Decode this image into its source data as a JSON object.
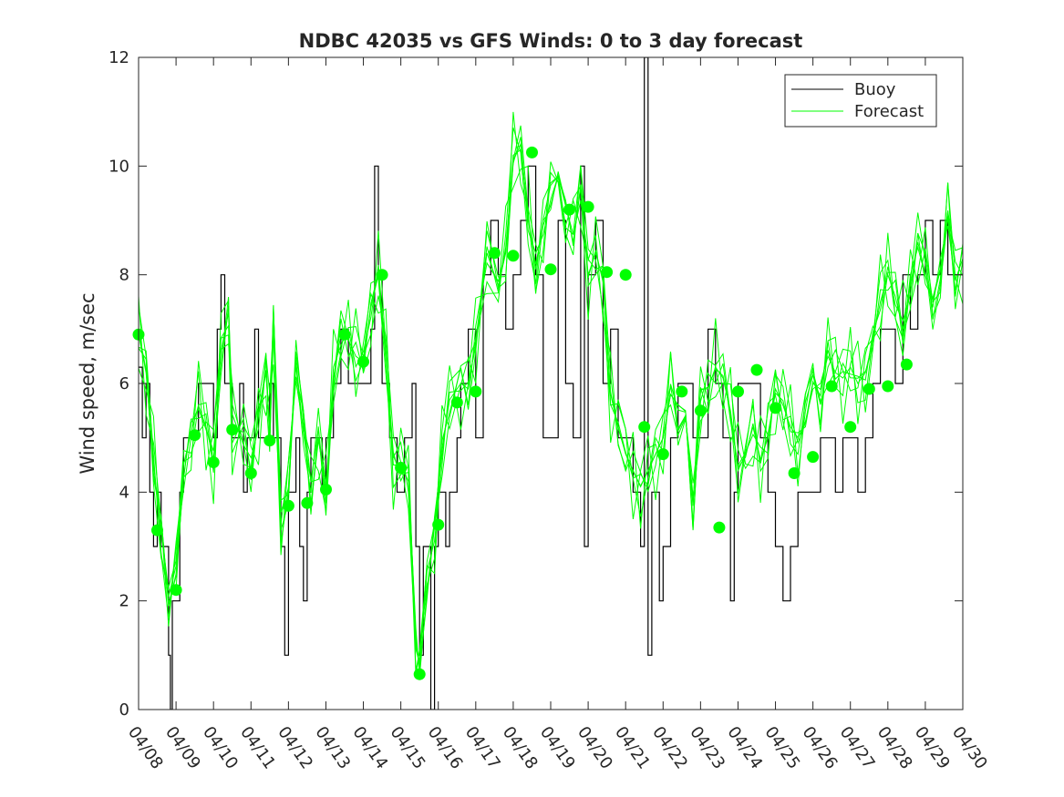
{
  "chart_data": {
    "type": "line",
    "title": "NDBC 42035 vs GFS Winds: 0 to 3 day forecast",
    "xlabel": "",
    "ylabel": "Wind speed, m/sec",
    "xlim": [
      "04/08",
      "04/30"
    ],
    "ylim": [
      0,
      12
    ],
    "yticks": [
      "0",
      "2",
      "4",
      "6",
      "8",
      "10",
      "12"
    ],
    "xticks": [
      "04/08",
      "04/09",
      "04/10",
      "04/11",
      "04/12",
      "04/13",
      "04/14",
      "04/15",
      "04/16",
      "04/17",
      "04/18",
      "04/19",
      "04/20",
      "04/21",
      "04/22",
      "04/23",
      "04/24",
      "04/25",
      "04/26",
      "04/27",
      "04/28",
      "04/29",
      "04/30"
    ],
    "grid": false,
    "legend_position": "top-right",
    "colors": {
      "buoy": "#000000",
      "forecast": "#00ff00",
      "axes": "#262626"
    },
    "series": [
      {
        "name": "Buoy",
        "style": "step",
        "points": [
          [
            0,
            6.3
          ],
          [
            0.1,
            5
          ],
          [
            0.2,
            6
          ],
          [
            0.3,
            4
          ],
          [
            0.4,
            3
          ],
          [
            0.5,
            4
          ],
          [
            0.6,
            3
          ],
          [
            0.7,
            3
          ],
          [
            0.8,
            1
          ],
          [
            0.85,
            0
          ],
          [
            0.9,
            2
          ],
          [
            1.0,
            2
          ],
          [
            1.1,
            4
          ],
          [
            1.2,
            5
          ],
          [
            1.4,
            5
          ],
          [
            1.6,
            6
          ],
          [
            1.8,
            6
          ],
          [
            2.0,
            5
          ],
          [
            2.1,
            7
          ],
          [
            2.2,
            8
          ],
          [
            2.3,
            6
          ],
          [
            2.5,
            5
          ],
          [
            2.7,
            6
          ],
          [
            2.8,
            4
          ],
          [
            2.9,
            5
          ],
          [
            3.0,
            5
          ],
          [
            3.1,
            7
          ],
          [
            3.2,
            5
          ],
          [
            3.5,
            6
          ],
          [
            3.6,
            5
          ],
          [
            3.8,
            3
          ],
          [
            3.9,
            1
          ],
          [
            4.0,
            4
          ],
          [
            4.2,
            5
          ],
          [
            4.3,
            3
          ],
          [
            4.4,
            2
          ],
          [
            4.5,
            4
          ],
          [
            4.6,
            5
          ],
          [
            4.7,
            5
          ],
          [
            4.9,
            4
          ],
          [
            5.0,
            5
          ],
          [
            5.2,
            6
          ],
          [
            5.4,
            7
          ],
          [
            5.6,
            6
          ],
          [
            5.8,
            6
          ],
          [
            6.0,
            6
          ],
          [
            6.2,
            7
          ],
          [
            6.3,
            10
          ],
          [
            6.4,
            8
          ],
          [
            6.5,
            6
          ],
          [
            6.7,
            5
          ],
          [
            6.9,
            4
          ],
          [
            7.1,
            5
          ],
          [
            7.3,
            6
          ],
          [
            7.4,
            3
          ],
          [
            7.5,
            1
          ],
          [
            7.6,
            3
          ],
          [
            7.8,
            0
          ],
          [
            7.9,
            3
          ],
          [
            8.0,
            4
          ],
          [
            8.2,
            3
          ],
          [
            8.3,
            4
          ],
          [
            8.5,
            5
          ],
          [
            8.6,
            6
          ],
          [
            8.8,
            7
          ],
          [
            9.0,
            5
          ],
          [
            9.2,
            8
          ],
          [
            9.4,
            9
          ],
          [
            9.6,
            8
          ],
          [
            9.8,
            7
          ],
          [
            10.0,
            8
          ],
          [
            10.2,
            9
          ],
          [
            10.4,
            10
          ],
          [
            10.6,
            8
          ],
          [
            10.8,
            5
          ],
          [
            11.0,
            5
          ],
          [
            11.2,
            9
          ],
          [
            11.4,
            6
          ],
          [
            11.6,
            5
          ],
          [
            11.8,
            10
          ],
          [
            11.9,
            3
          ],
          [
            12.0,
            8
          ],
          [
            12.2,
            9
          ],
          [
            12.4,
            6
          ],
          [
            12.6,
            7
          ],
          [
            12.8,
            5
          ],
          [
            13.0,
            5
          ],
          [
            13.2,
            4
          ],
          [
            13.4,
            3
          ],
          [
            13.5,
            12
          ],
          [
            13.6,
            1
          ],
          [
            13.7,
            4
          ],
          [
            13.9,
            2
          ],
          [
            14.0,
            3
          ],
          [
            14.2,
            5
          ],
          [
            14.4,
            6
          ],
          [
            14.6,
            6
          ],
          [
            14.8,
            5
          ],
          [
            15.0,
            5
          ],
          [
            15.2,
            7
          ],
          [
            15.4,
            6
          ],
          [
            15.6,
            5
          ],
          [
            15.8,
            2
          ],
          [
            15.9,
            4
          ],
          [
            16.0,
            6
          ],
          [
            16.2,
            6
          ],
          [
            16.4,
            6
          ],
          [
            16.6,
            5
          ],
          [
            16.8,
            4
          ],
          [
            17.0,
            3
          ],
          [
            17.2,
            2
          ],
          [
            17.4,
            3
          ],
          [
            17.6,
            4
          ],
          [
            18.0,
            4
          ],
          [
            18.2,
            5
          ],
          [
            18.4,
            5
          ],
          [
            18.6,
            4
          ],
          [
            18.8,
            5
          ],
          [
            19.0,
            5
          ],
          [
            19.2,
            4
          ],
          [
            19.4,
            5
          ],
          [
            19.6,
            6
          ],
          [
            19.8,
            7
          ],
          [
            20.0,
            7
          ],
          [
            20.2,
            6
          ],
          [
            20.4,
            8
          ],
          [
            20.6,
            7
          ],
          [
            20.8,
            8
          ],
          [
            21.0,
            9
          ],
          [
            21.2,
            8
          ],
          [
            21.4,
            9
          ],
          [
            21.6,
            8
          ],
          [
            21.8,
            8
          ],
          [
            22.0,
            8
          ]
        ]
      },
      {
        "name": "Forecast",
        "style": "line",
        "points": [
          [
            0,
            6.9
          ],
          [
            0.2,
            6.2
          ],
          [
            0.4,
            4.5
          ],
          [
            0.6,
            3.3
          ],
          [
            0.8,
            2.2
          ],
          [
            1.0,
            2.2
          ],
          [
            1.2,
            4.5
          ],
          [
            1.4,
            5.1
          ],
          [
            1.6,
            5.6
          ],
          [
            1.8,
            5.2
          ],
          [
            2.0,
            4.6
          ],
          [
            2.2,
            6.6
          ],
          [
            2.4,
            7.3
          ],
          [
            2.5,
            5.2
          ],
          [
            2.8,
            5.1
          ],
          [
            3.0,
            4.4
          ],
          [
            3.2,
            5.4
          ],
          [
            3.4,
            6.2
          ],
          [
            3.5,
            5.2
          ],
          [
            3.6,
            7.2
          ],
          [
            3.8,
            3.3
          ],
          [
            4.0,
            3.8
          ],
          [
            4.2,
            6.8
          ],
          [
            4.4,
            5.3
          ],
          [
            4.6,
            3.8
          ],
          [
            4.8,
            5.0
          ],
          [
            5.0,
            4.0
          ],
          [
            5.2,
            6.1
          ],
          [
            5.4,
            6.9
          ],
          [
            5.6,
            6.8
          ],
          [
            5.8,
            6.5
          ],
          [
            6.0,
            6.4
          ],
          [
            6.2,
            7.4
          ],
          [
            6.4,
            8.0
          ],
          [
            6.6,
            6.6
          ],
          [
            6.8,
            4.5
          ],
          [
            7.0,
            4.5
          ],
          [
            7.2,
            4.2
          ],
          [
            7.4,
            1.5
          ],
          [
            7.5,
            0.6
          ],
          [
            7.7,
            2.2
          ],
          [
            7.9,
            3.4
          ],
          [
            8.1,
            4.8
          ],
          [
            8.3,
            5.7
          ],
          [
            8.6,
            6.0
          ],
          [
            8.8,
            5.9
          ],
          [
            9.0,
            6.8
          ],
          [
            9.3,
            8.4
          ],
          [
            9.6,
            7.8
          ],
          [
            9.8,
            8.4
          ],
          [
            10.0,
            10.2
          ],
          [
            10.2,
            10.3
          ],
          [
            10.4,
            9.1
          ],
          [
            10.6,
            8.1
          ],
          [
            10.8,
            9.0
          ],
          [
            11.0,
            9.2
          ],
          [
            11.2,
            9.9
          ],
          [
            11.4,
            9.3
          ],
          [
            11.6,
            8.6
          ],
          [
            11.8,
            9.6
          ],
          [
            12.0,
            8.0
          ],
          [
            12.2,
            8.4
          ],
          [
            12.4,
            7.9
          ],
          [
            12.6,
            5.8
          ],
          [
            12.8,
            5.2
          ],
          [
            13.0,
            4.7
          ],
          [
            13.2,
            4.4
          ],
          [
            13.4,
            4.1
          ],
          [
            13.6,
            4.4
          ],
          [
            13.8,
            4.7
          ],
          [
            14.0,
            5.0
          ],
          [
            14.2,
            5.8
          ],
          [
            14.4,
            5.6
          ],
          [
            14.6,
            5.5
          ],
          [
            14.8,
            3.3
          ],
          [
            15.0,
            5.9
          ],
          [
            15.2,
            5.9
          ],
          [
            15.4,
            6.3
          ],
          [
            15.6,
            6.1
          ],
          [
            15.8,
            5.5
          ],
          [
            16.0,
            4.4
          ],
          [
            16.2,
            4.7
          ],
          [
            16.4,
            5.2
          ],
          [
            16.6,
            4.6
          ],
          [
            16.8,
            5.0
          ],
          [
            17.0,
            5.9
          ],
          [
            17.2,
            5.6
          ],
          [
            17.4,
            5.2
          ],
          [
            17.6,
            5.0
          ],
          [
            17.8,
            5.3
          ],
          [
            18.0,
            5.9
          ],
          [
            18.2,
            6.0
          ],
          [
            18.4,
            6.5
          ],
          [
            18.6,
            6.2
          ],
          [
            18.8,
            6.1
          ],
          [
            19.0,
            6.3
          ],
          [
            19.2,
            6.0
          ],
          [
            19.4,
            6.2
          ],
          [
            19.6,
            6.8
          ],
          [
            19.8,
            7.5
          ],
          [
            20.0,
            8.0
          ],
          [
            20.2,
            7.6
          ],
          [
            20.4,
            7.0
          ],
          [
            20.6,
            7.8
          ],
          [
            20.8,
            8.6
          ],
          [
            21.0,
            8.0
          ],
          [
            21.2,
            7.4
          ],
          [
            21.4,
            8.3
          ],
          [
            21.6,
            8.9
          ],
          [
            21.8,
            7.9
          ],
          [
            22.0,
            8.3
          ]
        ]
      }
    ],
    "forecast_markers": [
      [
        0.0,
        6.9
      ],
      [
        0.5,
        3.3
      ],
      [
        1.0,
        2.2
      ],
      [
        1.5,
        5.05
      ],
      [
        2.0,
        4.55
      ],
      [
        2.5,
        5.15
      ],
      [
        3.0,
        4.35
      ],
      [
        3.5,
        4.95
      ],
      [
        4.0,
        3.75
      ],
      [
        4.5,
        3.8
      ],
      [
        5.0,
        4.05
      ],
      [
        5.5,
        6.9
      ],
      [
        6.0,
        6.4
      ],
      [
        6.5,
        8.0
      ],
      [
        7.0,
        4.45
      ],
      [
        7.5,
        0.65
      ],
      [
        8.0,
        3.4
      ],
      [
        8.5,
        5.65
      ],
      [
        9.0,
        5.85
      ],
      [
        9.5,
        8.4
      ],
      [
        10.0,
        8.35
      ],
      [
        10.5,
        10.25
      ],
      [
        11.0,
        8.1
      ],
      [
        11.5,
        9.2
      ],
      [
        12.0,
        9.25
      ],
      [
        12.5,
        8.05
      ],
      [
        13.0,
        8.0
      ],
      [
        13.5,
        5.2
      ],
      [
        14.0,
        4.7
      ],
      [
        14.5,
        5.85
      ],
      [
        15.0,
        5.5
      ],
      [
        15.5,
        3.35
      ],
      [
        16.0,
        5.85
      ],
      [
        16.5,
        6.25
      ],
      [
        17.0,
        5.55
      ],
      [
        17.5,
        4.35
      ],
      [
        18.0,
        4.65
      ],
      [
        18.5,
        5.95
      ],
      [
        19.0,
        5.2
      ],
      [
        19.5,
        5.9
      ],
      [
        20.0,
        5.95
      ],
      [
        20.5,
        6.35
      ]
    ]
  }
}
